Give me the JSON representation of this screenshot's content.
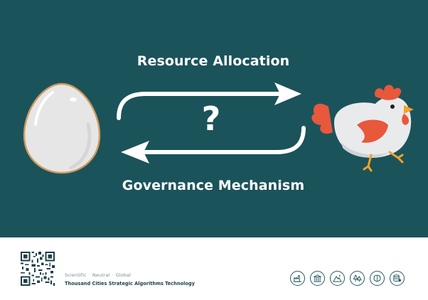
{
  "diagram": {
    "top_label": "Resource Allocation",
    "bottom_label": "Governance Mechanism",
    "center_symbol": "?",
    "left_figure": "egg",
    "right_figure": "chicken",
    "background_color": "#1b535b",
    "arrow_color": "#ffffff",
    "top_arrow_direction": "right",
    "bottom_arrow_direction": "left"
  },
  "footer": {
    "tagline": [
      "Scientific",
      "Neutral",
      "Global"
    ],
    "tagline_separator": "·",
    "brand": "Thousand Cities Strategic Algorithms Technology",
    "icons": [
      {
        "name": "factory-icon"
      },
      {
        "name": "bank-icon"
      },
      {
        "name": "mountain-icon"
      },
      {
        "name": "trees-icon"
      },
      {
        "name": "brain-icon"
      },
      {
        "name": "database-icon"
      }
    ]
  },
  "colors": {
    "egg_fill": "#e6e6e6",
    "egg_outline": "#d09a5a",
    "chicken_body": "#e9eaec",
    "chicken_wing": "#e8583a",
    "chicken_comb": "#e8583a",
    "chicken_beak": "#f2a227",
    "footer_icon": "#2a5a62"
  }
}
